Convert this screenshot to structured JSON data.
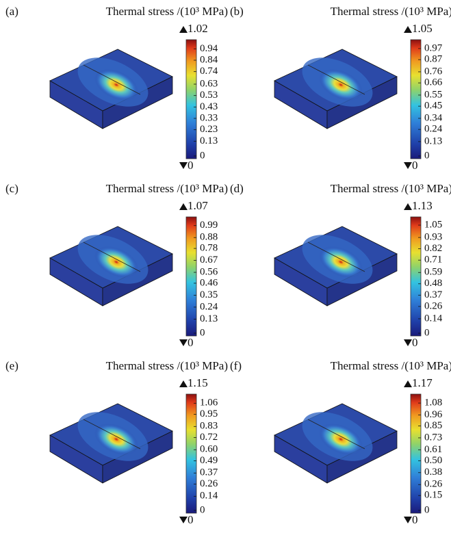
{
  "panels": [
    {
      "label": "(a)",
      "title": "Thermal stress /(10³ MPa)",
      "max": "1.02",
      "min": "0",
      "ticks": [
        "0.94",
        "0.84",
        "0.74",
        "0.63",
        "0.53",
        "0.43",
        "0.33",
        "0.23",
        "0.13",
        "0"
      ]
    },
    {
      "label": "(b)",
      "title": "Thermal stress /(10³ MPa)",
      "max": "1.05",
      "min": "0",
      "ticks": [
        "0.97",
        "0.87",
        "0.76",
        "0.66",
        "0.55",
        "0.45",
        "0.34",
        "0.24",
        "0.13",
        "0"
      ]
    },
    {
      "label": "(c)",
      "title": "Thermal stress /(10³ MPa)",
      "max": "1.07",
      "min": "0",
      "ticks": [
        "0.99",
        "0.88",
        "0.78",
        "0.67",
        "0.56",
        "0.46",
        "0.35",
        "0.24",
        "0.13",
        "0"
      ]
    },
    {
      "label": "(d)",
      "title": "Thermal stress /(10³ MPa)",
      "max": "1.13",
      "min": "0",
      "ticks": [
        "1.05",
        "0.93",
        "0.82",
        "0.71",
        "0.59",
        "0.48",
        "0.37",
        "0.26",
        "0.14",
        "0"
      ]
    },
    {
      "label": "(e)",
      "title": "Thermal stress /(10³ MPa)",
      "max": "1.15",
      "min": "0",
      "ticks": [
        "1.06",
        "0.95",
        "0.83",
        "0.72",
        "0.60",
        "0.49",
        "0.37",
        "0.26",
        "0.14",
        "0"
      ]
    },
    {
      "label": "(f)",
      "title": "Thermal stress /(10³ MPa)",
      "max": "1.17",
      "min": "0",
      "ticks": [
        "1.08",
        "0.96",
        "0.85",
        "0.73",
        "0.61",
        "0.50",
        "0.38",
        "0.26",
        "0.15",
        "0"
      ]
    }
  ]
}
